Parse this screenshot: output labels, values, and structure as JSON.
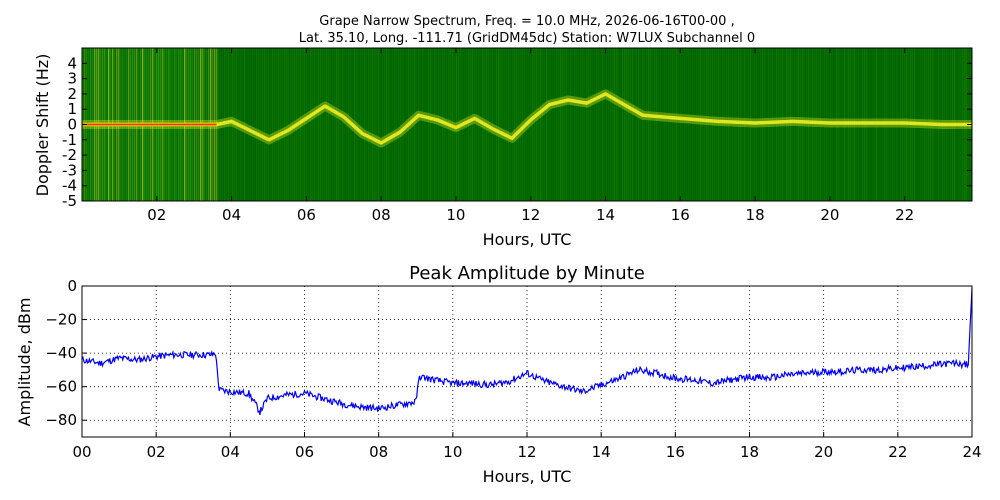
{
  "chart_data": [
    {
      "type": "heatmap",
      "title": "Grape Narrow Spectrum, Freq. = 10.0 MHz, 2026-06-16T00-00 ,",
      "subtitle": "Lat.  35.10, Long. -111.71 (GridDM45dc) Station: W7LUX Subchannel 0",
      "xlabel": "Hours, UTC",
      "ylabel": "Doppler Shift (Hz)",
      "xlim": [
        0,
        23.8
      ],
      "ylim": [
        -5,
        5
      ],
      "x_ticks": [
        "02",
        "04",
        "06",
        "08",
        "10",
        "12",
        "14",
        "16",
        "18",
        "20",
        "22"
      ],
      "y_ticks": [
        "-5",
        "-4",
        "-3",
        "-2",
        "-1",
        "0",
        "1",
        "2",
        "3",
        "4"
      ],
      "colors": {
        "background": "#006400",
        "mid": "#3cb400",
        "high": "#f0f020",
        "peak": "#ff3010"
      },
      "doppler_trace": {
        "x": [
          0,
          1,
          2,
          3,
          3.6,
          4,
          4.5,
          5,
          5.5,
          6,
          6.5,
          7,
          7.5,
          8,
          8.5,
          9,
          9.5,
          10,
          10.5,
          11,
          11.5,
          12,
          12.5,
          13,
          13.5,
          14,
          14.5,
          15,
          16,
          17,
          18,
          19,
          20,
          21,
          22,
          23,
          23.8
        ],
        "y": [
          0,
          0,
          0,
          0,
          0,
          0.2,
          -0.4,
          -1.0,
          -0.4,
          0.4,
          1.2,
          0.5,
          -0.6,
          -1.2,
          -0.5,
          0.6,
          0.3,
          -0.2,
          0.4,
          -0.3,
          -0.9,
          0.3,
          1.3,
          1.6,
          1.4,
          2.0,
          1.3,
          0.6,
          0.4,
          0.2,
          0.1,
          0.2,
          0.1,
          0.1,
          0.1,
          0.0,
          0.0
        ]
      }
    },
    {
      "type": "line",
      "title": "Peak Amplitude by Minute",
      "xlabel": "Hours, UTC",
      "ylabel": "Amplitude, dBm",
      "xlim": [
        0,
        24
      ],
      "ylim": [
        -90,
        0
      ],
      "x_ticks": [
        "00",
        "02",
        "04",
        "06",
        "08",
        "10",
        "12",
        "14",
        "16",
        "18",
        "20",
        "22",
        "24"
      ],
      "y_ticks": [
        "0",
        "−20",
        "−40",
        "−60",
        "−80"
      ],
      "grid": true,
      "color": "#0000ff",
      "x": [
        0,
        0.5,
        1,
        1.5,
        2,
        2.5,
        3,
        3.5,
        3.6,
        3.7,
        4,
        4.5,
        4.8,
        5,
        5.5,
        6,
        6.5,
        7,
        7.5,
        8,
        8.5,
        9,
        9.1,
        9.5,
        10,
        10.5,
        11,
        11.5,
        12,
        12.5,
        13,
        13.5,
        14,
        14.5,
        15,
        15.5,
        16,
        16.5,
        17,
        17.5,
        18,
        18.5,
        19,
        19.5,
        20,
        20.5,
        21,
        21.5,
        22,
        22.5,
        23,
        23.5,
        23.9,
        24
      ],
      "values": [
        -44,
        -46,
        -43,
        -44,
        -42,
        -41,
        -41,
        -41,
        -40,
        -62,
        -63,
        -64,
        -75,
        -67,
        -65,
        -64,
        -67,
        -70,
        -72,
        -73,
        -71,
        -69,
        -54,
        -56,
        -58,
        -58,
        -59,
        -57,
        -52,
        -57,
        -60,
        -63,
        -59,
        -55,
        -50,
        -52,
        -55,
        -56,
        -58,
        -56,
        -54,
        -55,
        -53,
        -52,
        -51,
        -51,
        -50,
        -50,
        -49,
        -48,
        -47,
        -46,
        -47,
        -1
      ]
    }
  ]
}
